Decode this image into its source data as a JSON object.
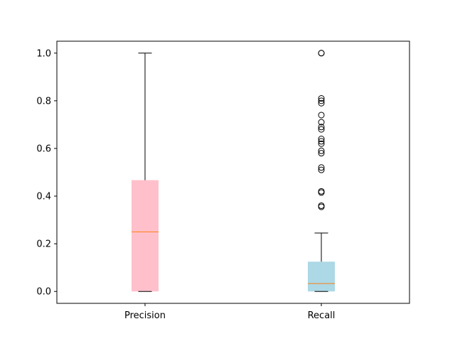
{
  "chart_data": {
    "type": "box",
    "title": "",
    "xlabel": "",
    "ylabel": "",
    "ylim": [
      -0.05,
      1.05
    ],
    "y_ticks": [
      {
        "value": 0.0,
        "label": "0.0"
      },
      {
        "value": 0.2,
        "label": "0.2"
      },
      {
        "value": 0.4,
        "label": "0.4"
      },
      {
        "value": 0.6,
        "label": "0.6"
      },
      {
        "value": 0.8,
        "label": "0.8"
      },
      {
        "value": 1.0,
        "label": "1.0"
      }
    ],
    "categories": [
      "Precision",
      "Recall"
    ],
    "boxes": [
      {
        "category": "Precision",
        "color": "#ffc0cb",
        "whisker_low": 0.0,
        "q1": 0.0,
        "median": 0.25,
        "q3": 0.467,
        "whisker_high": 1.0,
        "outliers": []
      },
      {
        "category": "Recall",
        "color": "#add8e6",
        "whisker_low": 0.0,
        "q1": 0.0,
        "median": 0.033,
        "q3": 0.125,
        "whisker_high": 0.245,
        "outliers": [
          1.0,
          1.0,
          0.81,
          0.8,
          0.79,
          0.74,
          0.71,
          0.69,
          0.68,
          0.64,
          0.63,
          0.62,
          0.59,
          0.58,
          0.52,
          0.51,
          0.42,
          0.415,
          0.36,
          0.355
        ]
      }
    ],
    "median_color": "#ff7f0e",
    "grid": false,
    "legend": "none"
  }
}
